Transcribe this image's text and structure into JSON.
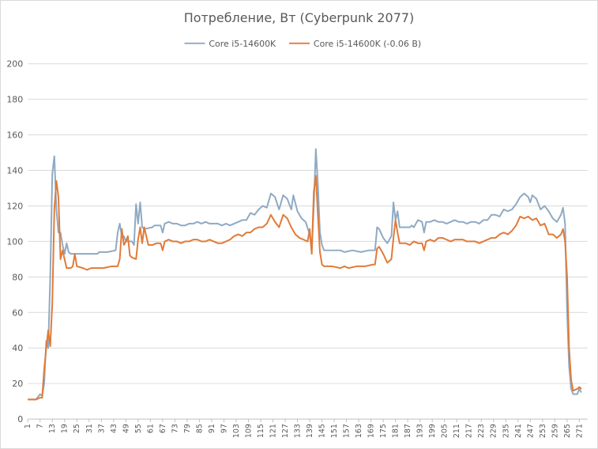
{
  "chart_data": {
    "type": "line",
    "title": "Потребление, Вт (Cyberpunk 2077)",
    "legend_position": "top",
    "grid": true,
    "ylim": [
      0,
      200
    ],
    "yticks": [
      0,
      20,
      40,
      60,
      80,
      100,
      120,
      140,
      160,
      180,
      200
    ],
    "xlim": [
      1,
      275
    ],
    "xticks": [
      1,
      7,
      13,
      19,
      25,
      31,
      37,
      43,
      49,
      55,
      61,
      67,
      73,
      79,
      85,
      91,
      97,
      103,
      109,
      115,
      121,
      127,
      133,
      139,
      145,
      151,
      157,
      163,
      169,
      175,
      181,
      187,
      193,
      199,
      205,
      211,
      217,
      223,
      229,
      235,
      241,
      247,
      253,
      259,
      265,
      271
    ],
    "series": [
      {
        "name": "Core i5-14600K",
        "color": "#8faac3",
        "points": [
          [
            1,
            11
          ],
          [
            3,
            11
          ],
          [
            5,
            11
          ],
          [
            7,
            14
          ],
          [
            8,
            13
          ],
          [
            9,
            20
          ],
          [
            10,
            44
          ],
          [
            11,
            40
          ],
          [
            12,
            80
          ],
          [
            13,
            138
          ],
          [
            14,
            148
          ],
          [
            15,
            118
          ],
          [
            16,
            105
          ],
          [
            17,
            105
          ],
          [
            18,
            98
          ],
          [
            19,
            93
          ],
          [
            20,
            99
          ],
          [
            21,
            94
          ],
          [
            22,
            93
          ],
          [
            24,
            93
          ],
          [
            28,
            93
          ],
          [
            32,
            93
          ],
          [
            35,
            93
          ],
          [
            36,
            94
          ],
          [
            40,
            94
          ],
          [
            44,
            95
          ],
          [
            45,
            105
          ],
          [
            46,
            110
          ],
          [
            47,
            103
          ],
          [
            48,
            103
          ],
          [
            49,
            100
          ],
          [
            52,
            100
          ],
          [
            53,
            98
          ],
          [
            54,
            121
          ],
          [
            55,
            110
          ],
          [
            56,
            122
          ],
          [
            57,
            108
          ],
          [
            58,
            107
          ],
          [
            62,
            108
          ],
          [
            63,
            109
          ],
          [
            66,
            109
          ],
          [
            67,
            105
          ],
          [
            68,
            110
          ],
          [
            70,
            111
          ],
          [
            72,
            110
          ],
          [
            74,
            110
          ],
          [
            76,
            109
          ],
          [
            78,
            109
          ],
          [
            80,
            110
          ],
          [
            82,
            110
          ],
          [
            84,
            111
          ],
          [
            86,
            110
          ],
          [
            88,
            111
          ],
          [
            90,
            110
          ],
          [
            92,
            110
          ],
          [
            94,
            110
          ],
          [
            96,
            109
          ],
          [
            98,
            110
          ],
          [
            100,
            109
          ],
          [
            102,
            110
          ],
          [
            104,
            111
          ],
          [
            106,
            112
          ],
          [
            108,
            112
          ],
          [
            110,
            116
          ],
          [
            112,
            115
          ],
          [
            114,
            118
          ],
          [
            116,
            120
          ],
          [
            118,
            119
          ],
          [
            120,
            127
          ],
          [
            122,
            125
          ],
          [
            124,
            118
          ],
          [
            126,
            126
          ],
          [
            128,
            124
          ],
          [
            130,
            118
          ],
          [
            131,
            126
          ],
          [
            133,
            117
          ],
          [
            135,
            113
          ],
          [
            137,
            111
          ],
          [
            139,
            104
          ],
          [
            140,
            95
          ],
          [
            141,
            120
          ],
          [
            142,
            152
          ],
          [
            143,
            132
          ],
          [
            144,
            105
          ],
          [
            145,
            98
          ],
          [
            146,
            95
          ],
          [
            150,
            95
          ],
          [
            154,
            95
          ],
          [
            156,
            94
          ],
          [
            160,
            95
          ],
          [
            164,
            94
          ],
          [
            168,
            95
          ],
          [
            171,
            95
          ],
          [
            172,
            108
          ],
          [
            173,
            107
          ],
          [
            175,
            102
          ],
          [
            177,
            99
          ],
          [
            179,
            103
          ],
          [
            180,
            122
          ],
          [
            181,
            112
          ],
          [
            182,
            117
          ],
          [
            183,
            108
          ],
          [
            186,
            108
          ],
          [
            188,
            108
          ],
          [
            189,
            109
          ],
          [
            190,
            108
          ],
          [
            192,
            112
          ],
          [
            194,
            111
          ],
          [
            195,
            105
          ],
          [
            196,
            111
          ],
          [
            198,
            111
          ],
          [
            200,
            112
          ],
          [
            202,
            111
          ],
          [
            204,
            111
          ],
          [
            206,
            110
          ],
          [
            208,
            111
          ],
          [
            210,
            112
          ],
          [
            212,
            111
          ],
          [
            214,
            111
          ],
          [
            216,
            110
          ],
          [
            218,
            111
          ],
          [
            220,
            111
          ],
          [
            222,
            110
          ],
          [
            224,
            112
          ],
          [
            226,
            112
          ],
          [
            228,
            115
          ],
          [
            230,
            115
          ],
          [
            232,
            114
          ],
          [
            234,
            118
          ],
          [
            236,
            117
          ],
          [
            238,
            118
          ],
          [
            240,
            121
          ],
          [
            242,
            125
          ],
          [
            244,
            127
          ],
          [
            246,
            125
          ],
          [
            247,
            122
          ],
          [
            248,
            126
          ],
          [
            250,
            124
          ],
          [
            252,
            118
          ],
          [
            254,
            120
          ],
          [
            256,
            117
          ],
          [
            258,
            113
          ],
          [
            260,
            111
          ],
          [
            262,
            115
          ],
          [
            263,
            119
          ],
          [
            264,
            110
          ],
          [
            265,
            60
          ],
          [
            266,
            30
          ],
          [
            267,
            17
          ],
          [
            268,
            14
          ],
          [
            270,
            14
          ],
          [
            271,
            17
          ],
          [
            272,
            15
          ]
        ]
      },
      {
        "name": "Core i5-14600K (-0.06 В)",
        "color": "#e07b39",
        "points": [
          [
            1,
            11
          ],
          [
            3,
            11
          ],
          [
            5,
            11
          ],
          [
            7,
            12
          ],
          [
            8,
            12
          ],
          [
            9,
            28
          ],
          [
            10,
            40
          ],
          [
            11,
            50
          ],
          [
            12,
            41
          ],
          [
            13,
            65
          ],
          [
            14,
            118
          ],
          [
            15,
            134
          ],
          [
            16,
            125
          ],
          [
            17,
            90
          ],
          [
            18,
            95
          ],
          [
            19,
            90
          ],
          [
            20,
            85
          ],
          [
            22,
            85
          ],
          [
            23,
            86
          ],
          [
            24,
            93
          ],
          [
            25,
            86
          ],
          [
            28,
            85
          ],
          [
            30,
            84
          ],
          [
            32,
            85
          ],
          [
            36,
            85
          ],
          [
            38,
            85
          ],
          [
            42,
            86
          ],
          [
            45,
            86
          ],
          [
            46,
            90
          ],
          [
            47,
            107
          ],
          [
            48,
            98
          ],
          [
            49,
            100
          ],
          [
            50,
            103
          ],
          [
            51,
            92
          ],
          [
            52,
            91
          ],
          [
            54,
            90
          ],
          [
            55,
            101
          ],
          [
            56,
            108
          ],
          [
            57,
            99
          ],
          [
            58,
            108
          ],
          [
            60,
            98
          ],
          [
            62,
            98
          ],
          [
            64,
            99
          ],
          [
            66,
            99
          ],
          [
            67,
            95
          ],
          [
            68,
            100
          ],
          [
            70,
            101
          ],
          [
            72,
            100
          ],
          [
            74,
            100
          ],
          [
            76,
            99
          ],
          [
            78,
            100
          ],
          [
            80,
            100
          ],
          [
            82,
            101
          ],
          [
            84,
            101
          ],
          [
            86,
            100
          ],
          [
            88,
            100
          ],
          [
            90,
            101
          ],
          [
            92,
            100
          ],
          [
            94,
            99
          ],
          [
            96,
            99
          ],
          [
            98,
            100
          ],
          [
            100,
            101
          ],
          [
            102,
            103
          ],
          [
            104,
            104
          ],
          [
            106,
            103
          ],
          [
            108,
            105
          ],
          [
            110,
            105
          ],
          [
            112,
            107
          ],
          [
            114,
            108
          ],
          [
            116,
            108
          ],
          [
            118,
            110
          ],
          [
            120,
            115
          ],
          [
            122,
            111
          ],
          [
            124,
            108
          ],
          [
            126,
            115
          ],
          [
            128,
            113
          ],
          [
            130,
            108
          ],
          [
            132,
            104
          ],
          [
            134,
            102
          ],
          [
            136,
            101
          ],
          [
            138,
            100
          ],
          [
            139,
            107
          ],
          [
            140,
            93
          ],
          [
            141,
            128
          ],
          [
            142,
            137
          ],
          [
            143,
            115
          ],
          [
            144,
            94
          ],
          [
            145,
            87
          ],
          [
            146,
            86
          ],
          [
            150,
            86
          ],
          [
            154,
            85
          ],
          [
            156,
            86
          ],
          [
            158,
            85
          ],
          [
            162,
            86
          ],
          [
            166,
            86
          ],
          [
            170,
            87
          ],
          [
            171,
            87
          ],
          [
            172,
            96
          ],
          [
            173,
            97
          ],
          [
            175,
            93
          ],
          [
            177,
            88
          ],
          [
            179,
            90
          ],
          [
            180,
            102
          ],
          [
            181,
            112
          ],
          [
            182,
            105
          ],
          [
            183,
            99
          ],
          [
            186,
            99
          ],
          [
            188,
            98
          ],
          [
            190,
            100
          ],
          [
            192,
            99
          ],
          [
            194,
            99
          ],
          [
            195,
            95
          ],
          [
            196,
            100
          ],
          [
            198,
            101
          ],
          [
            200,
            100
          ],
          [
            202,
            102
          ],
          [
            204,
            102
          ],
          [
            206,
            101
          ],
          [
            208,
            100
          ],
          [
            210,
            101
          ],
          [
            212,
            101
          ],
          [
            214,
            101
          ],
          [
            216,
            100
          ],
          [
            218,
            100
          ],
          [
            220,
            100
          ],
          [
            222,
            99
          ],
          [
            224,
            100
          ],
          [
            226,
            101
          ],
          [
            228,
            102
          ],
          [
            230,
            102
          ],
          [
            232,
            104
          ],
          [
            234,
            105
          ],
          [
            236,
            104
          ],
          [
            238,
            106
          ],
          [
            240,
            109
          ],
          [
            242,
            114
          ],
          [
            244,
            113
          ],
          [
            246,
            114
          ],
          [
            248,
            112
          ],
          [
            250,
            113
          ],
          [
            252,
            109
          ],
          [
            254,
            110
          ],
          [
            256,
            104
          ],
          [
            258,
            104
          ],
          [
            260,
            102
          ],
          [
            262,
            104
          ],
          [
            263,
            107
          ],
          [
            264,
            100
          ],
          [
            265,
            80
          ],
          [
            266,
            40
          ],
          [
            267,
            22
          ],
          [
            268,
            16
          ],
          [
            270,
            17
          ],
          [
            271,
            18
          ],
          [
            272,
            17
          ]
        ]
      }
    ]
  }
}
